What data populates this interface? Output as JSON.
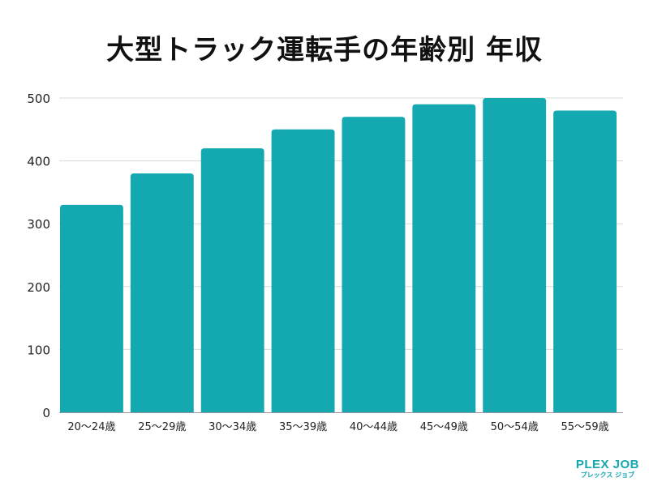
{
  "chart_data": {
    "type": "bar",
    "title": "大型トラック運転手の年齢別 年収",
    "categories": [
      "20〜24歳",
      "25〜29歳",
      "30〜34歳",
      "35〜39歳",
      "40〜44歳",
      "45〜49歳",
      "50〜54歳",
      "55〜59歳"
    ],
    "values": [
      330,
      380,
      420,
      450,
      470,
      490,
      500,
      480
    ],
    "xlabel": "",
    "ylabel": "",
    "ylim": [
      0,
      500
    ],
    "yticks": [
      0,
      100,
      200,
      300,
      400,
      500
    ],
    "grid": true,
    "bar_color": "#14a9b1"
  },
  "logo": {
    "line1": "PLEX JOB",
    "line2": "プレックス ジョブ"
  }
}
